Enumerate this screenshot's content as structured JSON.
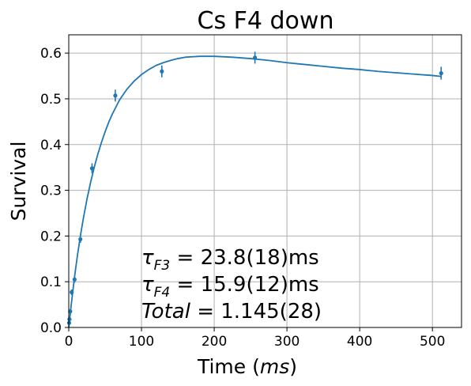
{
  "chart_data": {
    "type": "scatter",
    "title": "Cs F4 down",
    "xlabel": {
      "prefix": "Time (",
      "unit": "ms",
      "suffix": ")"
    },
    "ylabel": "Survival",
    "xlim": [
      0,
      540
    ],
    "ylim": [
      0,
      0.64
    ],
    "xticks": [
      0,
      100,
      200,
      300,
      400,
      500
    ],
    "yticks": [
      0.0,
      0.1,
      0.2,
      0.3,
      0.4,
      0.5,
      0.6
    ],
    "xtick_labels": [
      "0",
      "100",
      "200",
      "300",
      "400",
      "500"
    ],
    "ytick_labels": [
      "0.0",
      "0.1",
      "0.2",
      "0.3",
      "0.4",
      "0.5",
      "0.6"
    ],
    "grid": true,
    "series_color": "#1f77b4",
    "measurements": [
      {
        "x": 0.5,
        "y": 0.01,
        "err": 0.004
      },
      {
        "x": 1,
        "y": 0.018,
        "err": 0.004
      },
      {
        "x": 2,
        "y": 0.035,
        "err": 0.005
      },
      {
        "x": 4,
        "y": 0.077,
        "err": 0.006
      },
      {
        "x": 8,
        "y": 0.105,
        "err": 0.007
      },
      {
        "x": 16,
        "y": 0.193,
        "err": 0.008
      },
      {
        "x": 32,
        "y": 0.348,
        "err": 0.011
      },
      {
        "x": 64,
        "y": 0.507,
        "err": 0.013
      },
      {
        "x": 128,
        "y": 0.56,
        "err": 0.013
      },
      {
        "x": 256,
        "y": 0.59,
        "err": 0.013
      },
      {
        "x": 512,
        "y": 0.556,
        "err": 0.014
      }
    ],
    "fit_curve": {
      "x": [
        0,
        4,
        8,
        12,
        16,
        20,
        25,
        30,
        35,
        40,
        45,
        50,
        55,
        60,
        70,
        80,
        90,
        100,
        110,
        120,
        130,
        140,
        150,
        160,
        170,
        180,
        190,
        200,
        225,
        250,
        275,
        300,
        325,
        350,
        375,
        400,
        425,
        450,
        475,
        500,
        512
      ],
      "y": [
        0.0,
        0.058,
        0.111,
        0.158,
        0.2,
        0.238,
        0.28,
        0.317,
        0.35,
        0.379,
        0.405,
        0.428,
        0.449,
        0.467,
        0.498,
        0.521,
        0.539,
        0.553,
        0.564,
        0.573,
        0.579,
        0.584,
        0.588,
        0.591,
        0.592,
        0.593,
        0.593,
        0.593,
        0.591,
        0.588,
        0.584,
        0.579,
        0.575,
        0.571,
        0.567,
        0.564,
        0.56,
        0.557,
        0.554,
        0.551,
        0.549
      ]
    },
    "annotations": [
      {
        "symbol": "τ",
        "sub": "F3",
        "rest": " = 23.8(18)ms"
      },
      {
        "symbol": "τ",
        "sub": "F4",
        "rest": " = 15.9(12)ms"
      },
      {
        "symbol": "Total",
        "sub": "",
        "rest": " = 1.145(28)"
      }
    ]
  }
}
